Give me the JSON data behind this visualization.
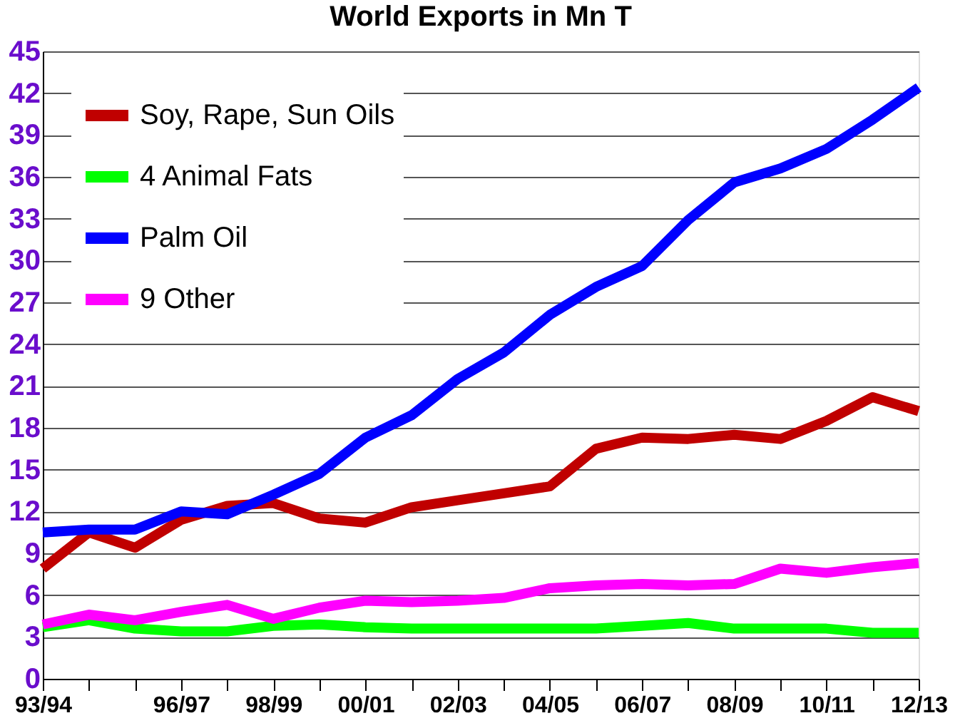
{
  "chart_data": {
    "type": "line",
    "title": "World Exports in Mn T",
    "categories": [
      "93/94",
      null,
      null,
      "96/97",
      null,
      "98/99",
      null,
      "00/01",
      null,
      "02/03",
      null,
      "04/05",
      null,
      "06/07",
      null,
      "08/09",
      null,
      "10/11",
      null,
      "12/13"
    ],
    "series": [
      {
        "name": "Soy, Rape, Sun Oils",
        "color": "#c00000",
        "values": [
          7.9,
          10.5,
          9.4,
          11.4,
          12.4,
          12.6,
          11.5,
          11.2,
          12.3,
          12.8,
          13.3,
          13.8,
          16.5,
          17.3,
          17.2,
          17.5,
          17.2,
          18.5,
          20.2,
          19.2
        ]
      },
      {
        "name": "4 Animal Fats",
        "color": "#00ff00",
        "values": [
          3.7,
          4.2,
          3.6,
          3.4,
          3.4,
          3.8,
          3.9,
          3.7,
          3.6,
          3.6,
          3.6,
          3.6,
          3.6,
          3.8,
          4.0,
          3.6,
          3.6,
          3.6,
          3.3,
          3.3
        ]
      },
      {
        "name": "Palm Oil",
        "color": "#0000ff",
        "values": [
          10.5,
          10.7,
          10.7,
          12.0,
          11.8,
          13.2,
          14.7,
          17.3,
          18.9,
          21.5,
          23.4,
          26.1,
          28.1,
          29.6,
          32.9,
          35.6,
          36.6,
          38.0,
          40.1,
          42.4
        ]
      },
      {
        "name": "9 Other",
        "color": "#ff00ff",
        "values": [
          3.9,
          4.6,
          4.2,
          4.8,
          5.3,
          4.3,
          5.1,
          5.6,
          5.5,
          5.6,
          5.8,
          6.5,
          6.7,
          6.8,
          6.7,
          6.8,
          7.9,
          7.6,
          8.0,
          8.3
        ]
      }
    ],
    "ylim": [
      0,
      45
    ],
    "yticks": [
      0,
      3,
      6,
      9,
      12,
      15,
      18,
      21,
      24,
      27,
      30,
      33,
      36,
      39,
      42,
      45
    ],
    "grid": "y",
    "legend": "top left",
    "marker": "none",
    "line_style": "solid"
  }
}
